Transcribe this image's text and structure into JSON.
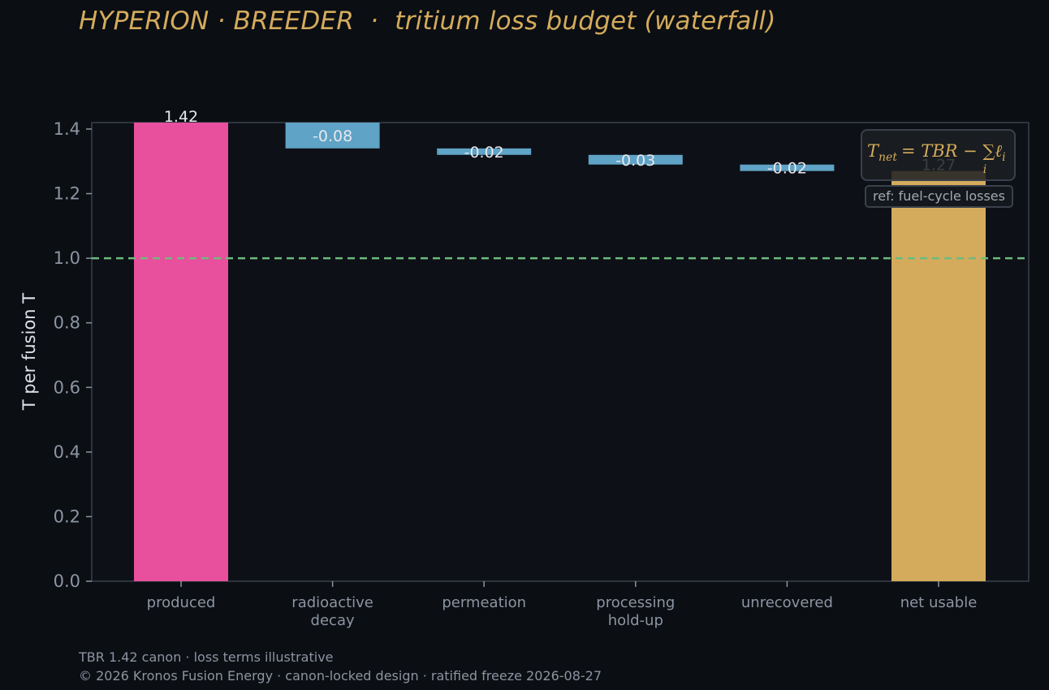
{
  "header": {
    "title": "HYPERION · BREEDER  ·  tritium loss budget (waterfall)"
  },
  "chart_data": {
    "type": "bar",
    "subtype": "waterfall",
    "title": "HYPERION · BREEDER  ·  tritium loss budget (waterfall)",
    "xlabel": "",
    "ylabel": "T per fusion T",
    "ylim": [
      0.0,
      1.42
    ],
    "yticks": [
      "0.0",
      "0.2",
      "0.4",
      "0.6",
      "0.8",
      "1.0",
      "1.2",
      "1.4"
    ],
    "categories": [
      [
        "produced"
      ],
      [
        "radioactive",
        "decay"
      ],
      [
        "permeation"
      ],
      [
        "processing",
        "hold-up"
      ],
      [
        "unrecovered"
      ],
      [
        "net usable"
      ]
    ],
    "bars": [
      {
        "kind": "total",
        "start": 0,
        "end": 1.42,
        "label": "1.42",
        "color": "#e84f9d"
      },
      {
        "kind": "loss",
        "start": 1.42,
        "end": 1.34,
        "label": "-0.08",
        "color": "#5fa3c6"
      },
      {
        "kind": "loss",
        "start": 1.34,
        "end": 1.32,
        "label": "-0.02",
        "color": "#5fa3c6"
      },
      {
        "kind": "loss",
        "start": 1.32,
        "end": 1.29,
        "label": "-0.03",
        "color": "#5fa3c6"
      },
      {
        "kind": "loss",
        "start": 1.29,
        "end": 1.27,
        "label": "-0.02",
        "color": "#5fa3c6"
      },
      {
        "kind": "total",
        "start": 0,
        "end": 1.27,
        "label": "1.27",
        "color": "#d4ab5c"
      }
    ],
    "reference_line": {
      "y": 1.0,
      "style": "dashed",
      "color": "#6dbb7e"
    },
    "annotation": {
      "formula_lhs": "T",
      "formula_lhs_sub": "net",
      "formula_rhs": "= TBR − ∑ℓ",
      "formula_sum_sub": "i",
      "formula_ell_sub": "i",
      "ref_text": "ref: fuel-cycle losses",
      "placement": "top-right"
    },
    "grid": false
  },
  "footer": {
    "line1": "TBR 1.42 canon · loss terms illustrative",
    "line2": "© 2026 Kronos Fusion Energy · canon-locked design · ratified freeze 2026-08-27"
  },
  "colors": {
    "background": "#0b0e13",
    "plot_bg": "#0d1017",
    "title": "#d4ab5c",
    "produced": "#e84f9d",
    "loss": "#5fa3c6",
    "net": "#d4ab5c",
    "threshold": "#6dbb7e"
  }
}
